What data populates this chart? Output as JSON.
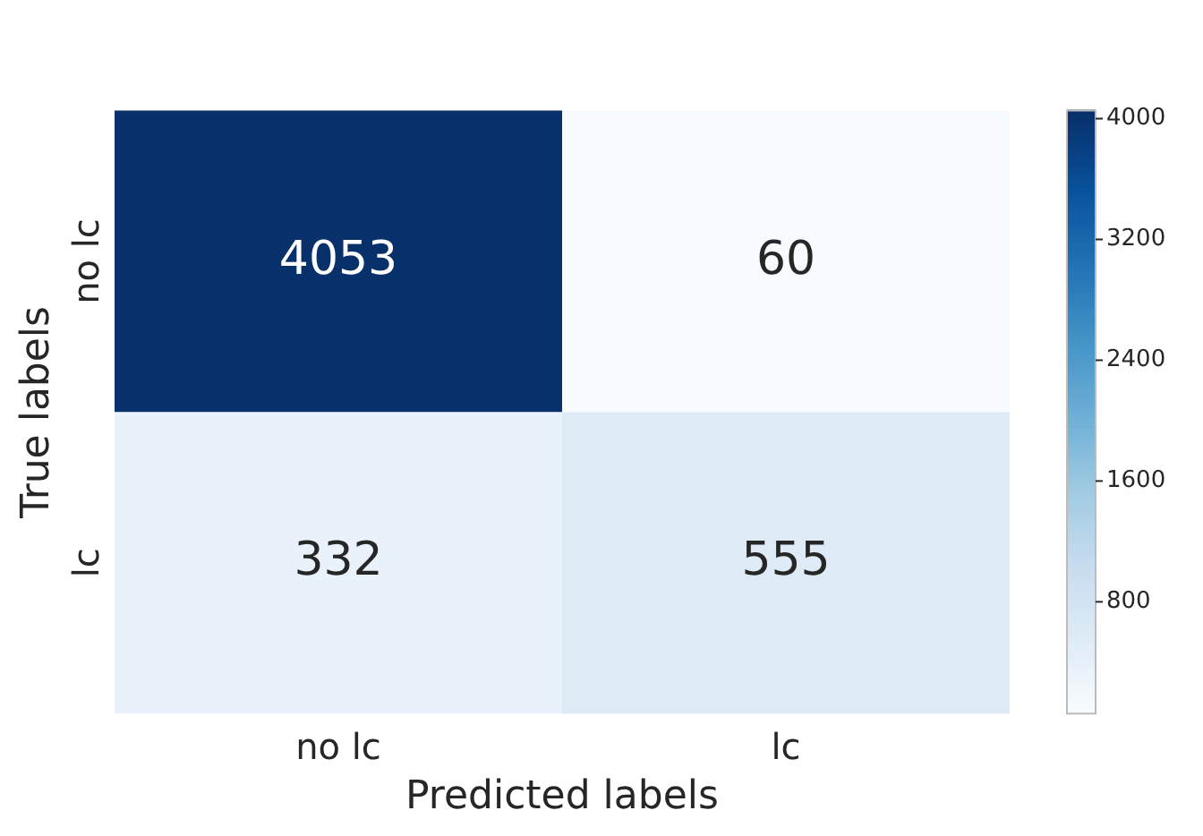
{
  "chart_data": {
    "type": "heatmap",
    "xlabel": "Predicted labels",
    "ylabel": "True labels",
    "categories": [
      "no lc",
      "lc"
    ],
    "y_categories": [
      "no lc",
      "lc"
    ],
    "cells": [
      [
        4053,
        60
      ],
      [
        332,
        555
      ]
    ],
    "clim": [
      60,
      4053
    ],
    "cticks": [
      800,
      1600,
      2400,
      3200,
      4000
    ],
    "data_labels": true
  }
}
